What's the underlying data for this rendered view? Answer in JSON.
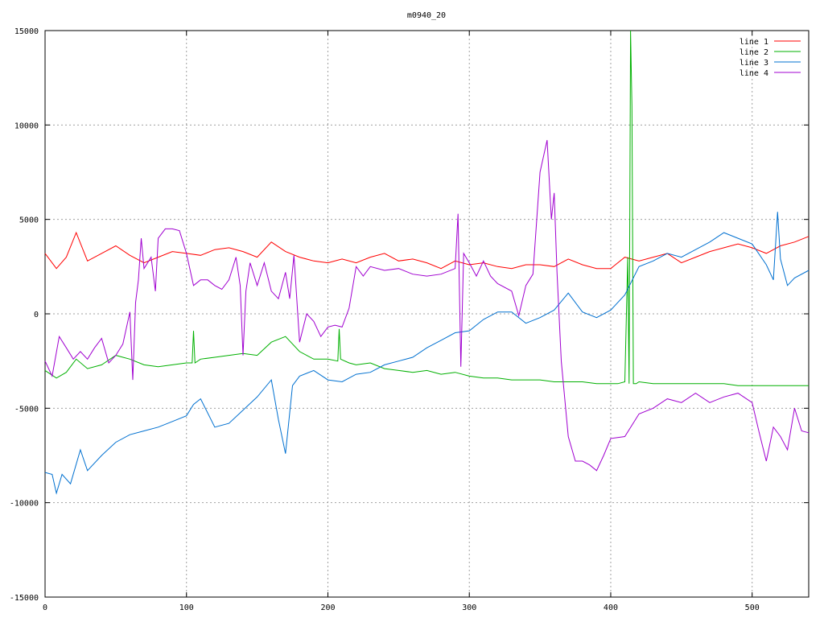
{
  "chart_data": {
    "type": "line",
    "title": "m0940_20",
    "xlabel": "",
    "ylabel": "",
    "xlim": [
      0,
      540
    ],
    "ylim": [
      -15000,
      15000
    ],
    "x_ticks": [
      0,
      100,
      200,
      300,
      400,
      500
    ],
    "y_ticks": [
      -15000,
      -10000,
      -5000,
      0,
      5000,
      10000,
      15000
    ],
    "grid": true,
    "legend_position": "top-right",
    "series": [
      {
        "name": "line 1",
        "color": "#ff0000",
        "x": [
          0,
          8,
          15,
          22,
          30,
          40,
          50,
          60,
          70,
          80,
          90,
          100,
          110,
          120,
          130,
          140,
          150,
          160,
          170,
          180,
          190,
          200,
          210,
          220,
          230,
          240,
          250,
          260,
          270,
          280,
          290,
          300,
          310,
          320,
          330,
          340,
          350,
          360,
          370,
          380,
          390,
          400,
          410,
          420,
          430,
          440,
          450,
          460,
          470,
          480,
          490,
          500,
          510,
          520,
          530,
          540
        ],
        "values": [
          3200,
          2400,
          3000,
          4300,
          2800,
          3200,
          3600,
          3100,
          2700,
          3000,
          3300,
          3200,
          3100,
          3400,
          3500,
          3300,
          3000,
          3800,
          3300,
          3000,
          2800,
          2700,
          2900,
          2700,
          3000,
          3200,
          2800,
          2900,
          2700,
          2400,
          2800,
          2600,
          2700,
          2500,
          2400,
          2600,
          2600,
          2500,
          2900,
          2600,
          2400,
          2400,
          3000,
          2800,
          3000,
          3200,
          2700,
          3000,
          3300,
          3500,
          3700,
          3500,
          3200,
          3600,
          3800,
          4100
        ]
      },
      {
        "name": "line 2",
        "color": "#00b000",
        "x": [
          0,
          8,
          15,
          22,
          30,
          40,
          50,
          60,
          70,
          80,
          90,
          100,
          104,
          105,
          106,
          110,
          120,
          130,
          140,
          150,
          160,
          170,
          180,
          190,
          200,
          207,
          208,
          209,
          215,
          220,
          230,
          240,
          250,
          260,
          270,
          280,
          290,
          300,
          310,
          320,
          330,
          340,
          350,
          360,
          370,
          380,
          390,
          400,
          405,
          410,
          412,
          413,
          414,
          415,
          416,
          417,
          418,
          420,
          430,
          440,
          450,
          460,
          470,
          480,
          490,
          500,
          510,
          520,
          530,
          540
        ],
        "values": [
          -3000,
          -3400,
          -3100,
          -2400,
          -2900,
          -2700,
          -2200,
          -2400,
          -2700,
          -2800,
          -2700,
          -2600,
          -2600,
          -900,
          -2600,
          -2400,
          -2300,
          -2200,
          -2100,
          -2200,
          -1500,
          -1200,
          -2000,
          -2400,
          -2400,
          -2500,
          -800,
          -2400,
          -2600,
          -2700,
          -2600,
          -2900,
          -3000,
          -3100,
          -3000,
          -3200,
          -3100,
          -3300,
          -3400,
          -3400,
          -3500,
          -3500,
          -3500,
          -3600,
          -3600,
          -3600,
          -3700,
          -3700,
          -3700,
          -3600,
          3000,
          -3700,
          15000,
          11000,
          -3700,
          -3700,
          -3700,
          -3600,
          -3700,
          -3700,
          -3700,
          -3700,
          -3700,
          -3700,
          -3800,
          -3800,
          -3800,
          -3800,
          -3800,
          -3800
        ]
      },
      {
        "name": "line 3",
        "color": "#0070d0",
        "x": [
          0,
          5,
          8,
          12,
          18,
          25,
          30,
          40,
          50,
          60,
          70,
          80,
          90,
          100,
          105,
          110,
          120,
          130,
          140,
          150,
          160,
          165,
          170,
          175,
          180,
          190,
          200,
          210,
          220,
          230,
          240,
          250,
          260,
          270,
          280,
          290,
          300,
          310,
          320,
          330,
          340,
          350,
          360,
          370,
          380,
          390,
          400,
          410,
          420,
          430,
          440,
          450,
          460,
          470,
          480,
          490,
          500,
          510,
          515,
          518,
          520,
          525,
          530,
          540
        ],
        "values": [
          -8400,
          -8500,
          -9500,
          -8500,
          -9000,
          -7200,
          -8300,
          -7500,
          -6800,
          -6400,
          -6200,
          -6000,
          -5700,
          -5400,
          -4800,
          -4500,
          -6000,
          -5800,
          -5100,
          -4400,
          -3500,
          -5600,
          -7400,
          -3800,
          -3300,
          -3000,
          -3500,
          -3600,
          -3200,
          -3100,
          -2700,
          -2500,
          -2300,
          -1800,
          -1400,
          -1000,
          -900,
          -300,
          100,
          100,
          -500,
          -200,
          200,
          1100,
          100,
          -200,
          200,
          1000,
          2500,
          2800,
          3200,
          3000,
          3400,
          3800,
          4300,
          4000,
          3700,
          2600,
          1800,
          5400,
          2900,
          1500,
          1900,
          2300
        ]
      },
      {
        "name": "line 4",
        "color": "#a000d0",
        "x": [
          0,
          5,
          10,
          15,
          20,
          25,
          30,
          35,
          40,
          45,
          50,
          55,
          60,
          62,
          64,
          66,
          68,
          70,
          75,
          78,
          80,
          85,
          90,
          95,
          100,
          105,
          110,
          115,
          120,
          125,
          130,
          135,
          138,
          140,
          142,
          145,
          150,
          155,
          160,
          165,
          170,
          173,
          176,
          180,
          185,
          190,
          195,
          200,
          205,
          210,
          215,
          220,
          225,
          230,
          240,
          250,
          260,
          270,
          280,
          290,
          292,
          294,
          296,
          300,
          305,
          310,
          315,
          320,
          330,
          335,
          340,
          345,
          350,
          355,
          358,
          360,
          362,
          365,
          370,
          375,
          380,
          385,
          390,
          395,
          400,
          410,
          420,
          430,
          440,
          450,
          460,
          470,
          480,
          490,
          500,
          505,
          510,
          515,
          520,
          525,
          530,
          535,
          540
        ],
        "values": [
          -2500,
          -3300,
          -1200,
          -1800,
          -2400,
          -2000,
          -2400,
          -1800,
          -1300,
          -2600,
          -2200,
          -1600,
          100,
          -3500,
          600,
          1800,
          4000,
          2400,
          3000,
          1200,
          4000,
          4500,
          4500,
          4400,
          3200,
          1500,
          1800,
          1800,
          1500,
          1300,
          1800,
          3000,
          1500,
          -2200,
          1200,
          2700,
          1500,
          2700,
          1200,
          800,
          2200,
          800,
          3100,
          -1500,
          0,
          -400,
          -1200,
          -700,
          -600,
          -700,
          300,
          2500,
          2000,
          2500,
          2300,
          2400,
          2100,
          2000,
          2100,
          2400,
          5300,
          -2800,
          3200,
          2700,
          2000,
          2800,
          2000,
          1600,
          1200,
          -100,
          1500,
          2100,
          7500,
          9200,
          5000,
          6400,
          2200,
          -2500,
          -6500,
          -7800,
          -7800,
          -8000,
          -8300,
          -7500,
          -6600,
          -6500,
          -5300,
          -5000,
          -4500,
          -4700,
          -4200,
          -4700,
          -4400,
          -4200,
          -4700,
          -6300,
          -7800,
          -6000,
          -6500,
          -7200,
          -5000,
          -6200,
          -6300
        ]
      }
    ]
  }
}
